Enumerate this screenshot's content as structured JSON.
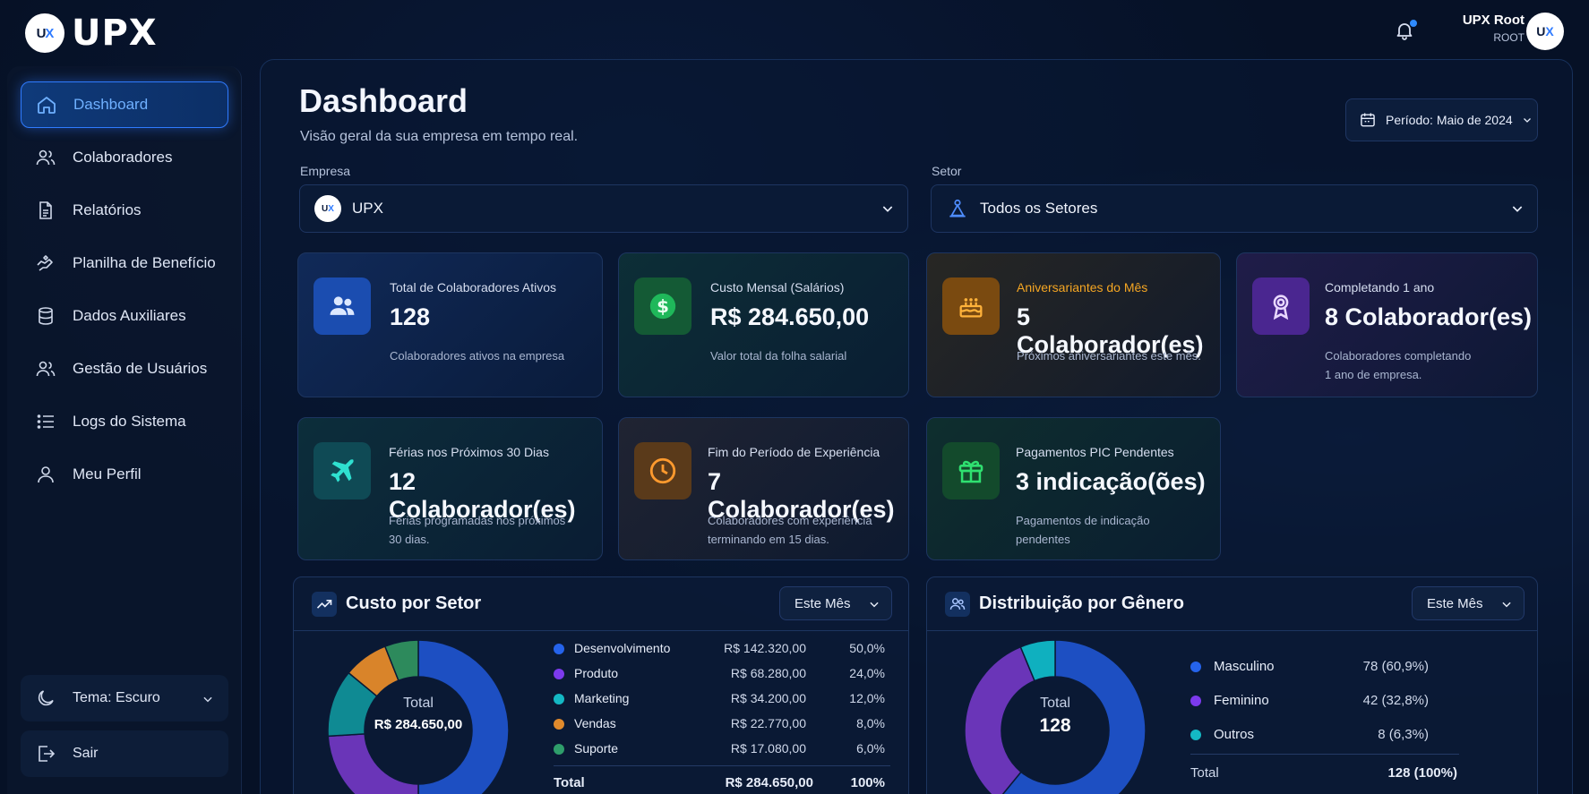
{
  "brand": {
    "logo_text": "UPX",
    "logo_mark_left": "U",
    "logo_mark_right": "X"
  },
  "header": {
    "user_name": "UPX Root",
    "user_role": "ROOT",
    "notification_dot": true
  },
  "sidebar": {
    "items": [
      {
        "label": "Dashboard",
        "icon": "home-icon",
        "active": true
      },
      {
        "label": "Colaboradores",
        "icon": "users-icon"
      },
      {
        "label": "Relatórios",
        "icon": "document-icon"
      },
      {
        "label": "Planilha de Benefício",
        "icon": "benefit-icon"
      },
      {
        "label": "Dados Auxiliares",
        "icon": "database-icon"
      },
      {
        "label": "Gestão de Usuários",
        "icon": "user-group-icon"
      },
      {
        "label": "Logs do Sistema",
        "icon": "list-icon"
      },
      {
        "label": "Meu Perfil",
        "icon": "user-icon"
      }
    ],
    "theme_label": "Tema: Escuro",
    "logout_label": "Sair"
  },
  "page": {
    "title": "Dashboard",
    "subtitle": "Visão geral da sua empresa em tempo real.",
    "period_label": "Período: Maio de 2024"
  },
  "filters": {
    "company_label": "Empresa",
    "company_value": "UPX",
    "sector_label": "Setor",
    "sector_value": "Todos os Setores"
  },
  "cards": [
    {
      "title": "Total de Colaboradores Ativos",
      "value": "128",
      "desc": [
        "Colaboradores ativos na empresa"
      ],
      "icon": "users-icon",
      "color": "#2f7bff"
    },
    {
      "title": "Custo Mensal (Salários)",
      "value": "R$ 284.650,00",
      "desc": [
        "Valor total da folha salarial"
      ],
      "icon": "dollar-icon",
      "color": "#22c55e"
    },
    {
      "title": "Aniversariantes do Mês",
      "value": "5 Colaborador(es)",
      "desc": [
        "Próximos aniversariantes este mês."
      ],
      "icon": "cake-icon",
      "color": "#f59e0b"
    },
    {
      "title": "Completando 1 ano",
      "value": "8 Colaborador(es)",
      "desc": [
        "Colaboradores completando",
        "1 ano de empresa."
      ],
      "icon": "award-icon",
      "color": "#a855f7"
    },
    {
      "title": "Férias nos Próximos 30 Dias",
      "value": "12 Colaborador(es)",
      "desc": [
        "Férias programadas nos próximos",
        "30 dias."
      ],
      "icon": "plane-icon",
      "color": "#2dd4bf"
    },
    {
      "title": "Fim do Período de Experiência",
      "value": "7 Colaborador(es)",
      "desc": [
        "Colaboradores com experiência",
        "terminando em 15 dias."
      ],
      "icon": "clock-icon",
      "color": "#f59e0b"
    },
    {
      "title": "Pagamentos PIC Pendentes",
      "value": "3 indicação(ões)",
      "desc": [
        "Pagamentos de indicação",
        "pendentes"
      ],
      "icon": "gift-icon",
      "color": "#22c55e"
    }
  ],
  "cost_panel": {
    "title": "Custo por Setor",
    "filter": "Este Mês",
    "center_label": "Total",
    "center_value": "R$ 284.650,00",
    "total_label": "Total",
    "total_value": "R$ 284.650,00",
    "total_pct": "100%"
  },
  "gender_panel": {
    "title": "Distribuição por Gênero",
    "filter": "Este Mês",
    "center_label": "Total",
    "center_value": "128",
    "total_label": "Total",
    "total_value": "128 (100%)"
  },
  "chart_data": [
    {
      "type": "pie",
      "title": "Custo por Setor",
      "categories": [
        "Desenvolvimento",
        "Produto",
        "Marketing",
        "Vendas",
        "Suporte"
      ],
      "values": [
        142320,
        68280,
        34200,
        22770,
        17080
      ],
      "value_labels": [
        "R$ 142.320,00",
        "R$ 68.280,00",
        "R$ 34.200,00",
        "R$ 22.770,00",
        "R$ 17.080,00"
      ],
      "percent_labels": [
        "50,0%",
        "24,0%",
        "12,0%",
        "8,0%",
        "6,0%"
      ],
      "colors": [
        "#2563eb",
        "#7c3aed",
        "#14b8c4",
        "#e08a2c",
        "#2f9e6b"
      ],
      "plot_colors": [
        "#1d4fc2",
        "#6a35b8",
        "#0f8a93",
        "#d9842a",
        "#2d8a5c"
      ]
    },
    {
      "type": "pie",
      "title": "Distribuição por Gênero",
      "categories": [
        "Masculino",
        "Feminino",
        "Outros"
      ],
      "values": [
        78,
        42,
        8
      ],
      "value_labels": [
        "78 (60,9%)",
        "42 (32,8%)",
        "8 (6,3%)"
      ],
      "colors": [
        "#2563eb",
        "#7c3aed",
        "#14b8c4"
      ],
      "plot_colors": [
        "#1d4fc2",
        "#6a35b8",
        "#0fb0bf"
      ]
    }
  ]
}
